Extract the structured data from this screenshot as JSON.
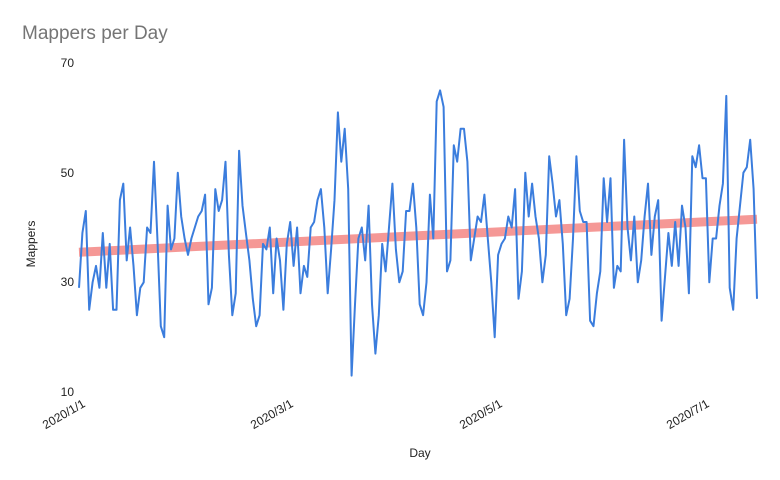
{
  "chart_data": {
    "type": "line",
    "title": "Mappers per Day",
    "xlabel": "Day",
    "ylabel": "Mappers",
    "x_start": "2020/1/1",
    "x_tick_labels": [
      "2020/1/1",
      "2020/3/1",
      "2020/5/1",
      "2020/7/1"
    ],
    "y_tick_labels": [
      "10",
      "30",
      "50",
      "70"
    ],
    "ylim": [
      10,
      70
    ],
    "grid": false,
    "legend": "none",
    "series": [
      {
        "color": "#3b7ddd",
        "values": [
          29,
          39,
          43,
          25,
          30,
          33,
          29,
          39,
          29,
          37,
          25,
          25,
          45,
          48,
          34,
          40,
          33,
          24,
          29,
          30,
          40,
          39,
          52,
          38,
          22,
          20,
          44,
          36,
          38,
          50,
          42,
          38,
          35,
          38,
          40,
          42,
          43,
          46,
          26,
          29,
          47,
          43,
          45,
          52,
          35,
          24,
          28,
          54,
          44,
          39,
          34,
          27,
          22,
          24,
          37,
          36,
          40,
          28,
          38,
          34,
          25,
          37,
          41,
          33,
          40,
          28,
          33,
          31,
          40,
          41,
          45,
          47,
          40,
          28,
          36,
          45,
          61,
          52,
          58,
          47,
          13,
          26,
          38,
          40,
          34,
          44,
          26,
          17,
          24,
          37,
          32,
          40,
          48,
          36,
          30,
          32,
          43,
          43,
          48,
          40,
          26,
          24,
          30,
          46,
          38,
          63,
          65,
          62,
          32,
          34,
          55,
          52,
          58,
          58,
          52,
          34,
          38,
          42,
          41,
          46,
          38,
          30,
          20,
          35,
          37,
          38,
          42,
          40,
          47,
          27,
          32,
          50,
          42,
          48,
          42,
          38,
          30,
          35,
          53,
          48,
          42,
          45,
          37,
          24,
          27,
          38,
          53,
          43,
          41,
          41,
          23,
          22,
          28,
          32,
          49,
          41,
          49,
          29,
          33,
          32,
          56,
          40,
          34,
          42,
          30,
          34,
          42,
          48,
          35,
          42,
          45,
          23,
          31,
          39,
          33,
          41,
          33,
          44,
          40,
          28,
          53,
          51,
          55,
          49,
          49,
          30,
          38,
          38,
          44,
          48,
          64,
          29,
          25,
          38,
          44,
          50,
          51,
          56,
          47,
          27
        ]
      },
      {
        "color": "#ef5350",
        "values": [
          35.5,
          41.5
        ]
      }
    ]
  }
}
